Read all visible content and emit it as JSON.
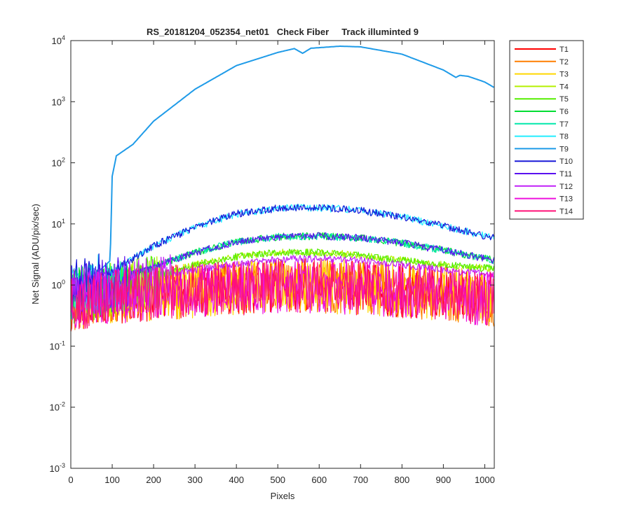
{
  "chart_data": {
    "type": "line",
    "title": "RS_20181204_052354_net01   Check Fiber     Track illuminted 9",
    "xlabel": "Pixels",
    "ylabel": "Net Signal (ADU/pix/sec)",
    "xlim": [
      0,
      1023
    ],
    "ylim": [
      0.001,
      10000
    ],
    "yscale": "log",
    "grid": false,
    "legend_location": "outside-right-top",
    "x_ticks": [
      0,
      100,
      200,
      300,
      400,
      500,
      600,
      700,
      800,
      900,
      1000
    ],
    "x_tick_labels": [
      "0",
      "100",
      "200",
      "300",
      "400",
      "500",
      "600",
      "700",
      "800",
      "900",
      "1000"
    ],
    "y_ticks": [
      0.001,
      0.01,
      0.1,
      1,
      10,
      100,
      1000,
      10000
    ],
    "y_tick_labels": [
      {
        "base": "10",
        "exp": "-3"
      },
      {
        "base": "10",
        "exp": "-2"
      },
      {
        "base": "10",
        "exp": "-1"
      },
      {
        "base": "10",
        "exp": "0"
      },
      {
        "base": "10",
        "exp": "1"
      },
      {
        "base": "10",
        "exp": "2"
      },
      {
        "base": "10",
        "exp": "3"
      },
      {
        "base": "10",
        "exp": "4"
      }
    ],
    "series": [
      {
        "name": "T1",
        "color": "#ff0000",
        "x": [
          0,
          100,
          200,
          300,
          400,
          500,
          600,
          700,
          800,
          900,
          1023
        ],
        "y": [
          0.6,
          0.8,
          0.9,
          1.0,
          1.1,
          1.2,
          1.2,
          1.1,
          1.0,
          0.9,
          0.7
        ]
      },
      {
        "name": "T2",
        "color": "#ff7f00",
        "x": [
          0,
          100,
          200,
          300,
          400,
          500,
          600,
          700,
          800,
          900,
          1023
        ],
        "y": [
          0.6,
          0.8,
          0.9,
          1.0,
          1.1,
          1.2,
          1.2,
          1.1,
          1.0,
          0.9,
          0.7
        ]
      },
      {
        "name": "T3",
        "color": "#ffd700",
        "x": [
          0,
          100,
          200,
          300,
          400,
          500,
          600,
          700,
          800,
          900,
          1023
        ],
        "y": [
          0.6,
          0.8,
          0.9,
          1.0,
          1.1,
          1.2,
          1.2,
          1.1,
          1.0,
          0.9,
          0.7
        ]
      },
      {
        "name": "T4",
        "color": "#b5f000",
        "x": [
          0,
          100,
          200,
          300,
          400,
          500,
          600,
          700,
          800,
          900,
          1023
        ],
        "y": [
          0.8,
          1.0,
          1.4,
          2.2,
          3.0,
          3.5,
          3.5,
          3.2,
          2.6,
          2.2,
          1.9
        ]
      },
      {
        "name": "T5",
        "color": "#55ee00",
        "x": [
          0,
          100,
          200,
          300,
          400,
          500,
          600,
          700,
          800,
          900,
          1023
        ],
        "y": [
          0.8,
          1.0,
          1.4,
          2.2,
          3.0,
          3.5,
          3.5,
          3.2,
          2.6,
          2.2,
          1.9
        ]
      },
      {
        "name": "T6",
        "color": "#00dd33",
        "x": [
          0,
          100,
          200,
          300,
          400,
          500,
          600,
          700,
          800,
          900,
          1023
        ],
        "y": [
          0.9,
          1.2,
          2.0,
          3.5,
          5.2,
          6.3,
          6.5,
          6.0,
          5.0,
          3.8,
          2.6
        ]
      },
      {
        "name": "T7",
        "color": "#00e8aa",
        "x": [
          0,
          100,
          200,
          300,
          400,
          500,
          600,
          700,
          800,
          900,
          1023
        ],
        "y": [
          0.9,
          1.2,
          2.0,
          3.5,
          5.2,
          6.3,
          6.5,
          6.0,
          5.0,
          3.8,
          2.6
        ]
      },
      {
        "name": "T8",
        "color": "#22eeff",
        "x": [
          0,
          100,
          200,
          300,
          400,
          500,
          600,
          700,
          800,
          900,
          1023
        ],
        "y": [
          1.1,
          1.7,
          4.5,
          9.0,
          15.0,
          18.5,
          19.0,
          17.0,
          13.5,
          9.5,
          6.0
        ]
      },
      {
        "name": "T9",
        "color": "#1f9be8",
        "x": [
          0,
          50,
          95,
          100,
          110,
          150,
          200,
          300,
          400,
          500,
          540,
          560,
          580,
          650,
          700,
          800,
          900,
          930,
          940,
          960,
          1000,
          1023
        ],
        "y": [
          1.0,
          1.3,
          2.5,
          60,
          130,
          200,
          480,
          1600,
          3900,
          6400,
          7400,
          6200,
          7500,
          8100,
          7900,
          6000,
          3300,
          2500,
          2700,
          2600,
          2100,
          1700
        ]
      },
      {
        "name": "T10",
        "color": "#1818d8",
        "x": [
          0,
          100,
          200,
          300,
          400,
          500,
          600,
          700,
          800,
          900,
          1023
        ],
        "y": [
          1.1,
          1.7,
          4.5,
          9.0,
          15.0,
          18.5,
          19.0,
          17.0,
          13.5,
          9.5,
          6.0
        ]
      },
      {
        "name": "T11",
        "color": "#5a10f0",
        "x": [
          0,
          100,
          200,
          300,
          400,
          500,
          600,
          700,
          800,
          900,
          1023
        ],
        "y": [
          0.9,
          1.2,
          2.0,
          3.5,
          5.2,
          6.3,
          6.5,
          6.0,
          5.0,
          3.8,
          2.6
        ]
      },
      {
        "name": "T12",
        "color": "#c020f8",
        "x": [
          0,
          100,
          200,
          300,
          400,
          500,
          600,
          700,
          800,
          900,
          1023
        ],
        "y": [
          0.8,
          1.0,
          1.3,
          1.8,
          2.3,
          2.7,
          2.8,
          2.6,
          2.2,
          1.8,
          1.5
        ]
      },
      {
        "name": "T13",
        "color": "#ee10dd",
        "x": [
          0,
          100,
          200,
          300,
          400,
          500,
          600,
          700,
          800,
          900,
          1023
        ],
        "y": [
          0.6,
          0.8,
          0.9,
          1.0,
          1.1,
          1.2,
          1.2,
          1.1,
          1.0,
          0.9,
          0.7
        ]
      },
      {
        "name": "T14",
        "color": "#ff1077",
        "x": [
          0,
          100,
          200,
          300,
          400,
          500,
          600,
          700,
          800,
          900,
          1023
        ],
        "y": [
          0.6,
          0.8,
          0.9,
          1.0,
          1.1,
          1.2,
          1.2,
          1.1,
          1.0,
          0.9,
          0.7
        ]
      }
    ]
  }
}
